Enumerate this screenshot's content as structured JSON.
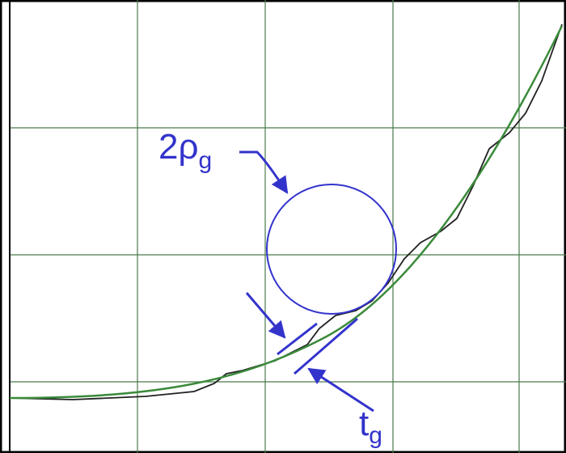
{
  "labels": {
    "radius": {
      "main": "2ρ",
      "sub": "g"
    },
    "thickness": {
      "main": "t",
      "sub": "g"
    }
  }
}
